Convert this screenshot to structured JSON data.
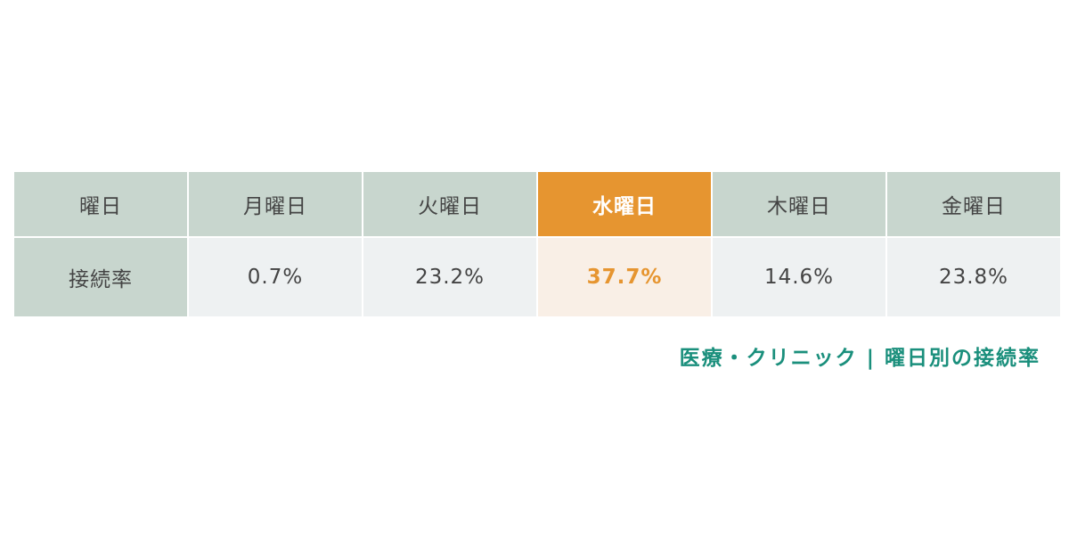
{
  "chart_data": {
    "type": "table",
    "row_header_label": "曜日",
    "metric_label": "接続率",
    "columns": [
      {
        "day": "月曜日",
        "display": "0.7%",
        "value": 0.7,
        "highlight": false
      },
      {
        "day": "火曜日",
        "display": "23.2%",
        "value": 23.2,
        "highlight": false
      },
      {
        "day": "水曜日",
        "display": "37.7%",
        "value": 37.7,
        "highlight": true
      },
      {
        "day": "木曜日",
        "display": "14.6%",
        "value": 14.6,
        "highlight": false
      },
      {
        "day": "金曜日",
        "display": "23.8%",
        "value": 23.8,
        "highlight": false
      }
    ],
    "unit": "%",
    "caption": "医療・クリニック | 曜日別の接続率"
  },
  "colors": {
    "header_bg": "#c8d6ce",
    "value_bg": "#eef1f2",
    "highlight_header_bg": "#e69530",
    "highlight_value_bg": "#f9efe6",
    "highlight_text": "#e69530",
    "caption_color": "#1a8f7c",
    "text_color": "#444444"
  }
}
